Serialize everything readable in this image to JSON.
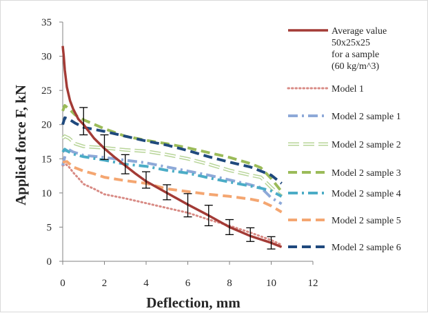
{
  "chart_data": {
    "type": "line",
    "title": "",
    "xlabel": "Deflection, mm",
    "ylabel": "Applied force F, kN",
    "xlim": [
      0,
      12
    ],
    "ylim": [
      0,
      35
    ],
    "xticks": [
      0,
      2,
      4,
      6,
      8,
      10,
      12
    ],
    "yticks": [
      0,
      5,
      10,
      15,
      20,
      25,
      30,
      35
    ],
    "grid": false,
    "legend_position": "right",
    "series": [
      {
        "name": "Average value 50x25x25 for a sample (60 kg/m^3)",
        "legend_lines": [
          "Average value",
          "50x25x25",
          "for a sample",
          "(60 kg/m^3)"
        ],
        "color": "#a33b36",
        "style": "solid",
        "x": [
          0,
          0.05,
          0.1,
          0.2,
          0.35,
          0.5,
          0.75,
          1,
          1.5,
          2,
          2.5,
          3,
          3.5,
          4,
          5,
          6,
          7,
          8,
          9,
          10,
          10.5
        ],
        "y": [
          31.5,
          30,
          28,
          25.5,
          23.5,
          22.3,
          20.8,
          20,
          18,
          16.5,
          15.2,
          14,
          12.8,
          11.7,
          10,
          8.3,
          6.7,
          5,
          3.7,
          2.7,
          2.1
        ],
        "error_bars": {
          "x": [
            1,
            2,
            3,
            4,
            5,
            6,
            7,
            8,
            9,
            10
          ],
          "y": [
            20.5,
            16.7,
            14.2,
            11.9,
            10.1,
            8.2,
            6.7,
            5.0,
            3.9,
            2.7
          ],
          "err": [
            2.0,
            1.8,
            1.4,
            1.2,
            1.1,
            1.7,
            1.5,
            1.1,
            1.0,
            0.9
          ]
        }
      },
      {
        "name": "Model 1",
        "color": "#d88a84",
        "style": "dotted",
        "x": [
          0,
          0.15,
          0.3,
          0.5,
          0.8,
          1,
          1.5,
          2,
          3,
          4,
          5,
          6,
          7,
          8,
          9,
          10,
          10.5
        ],
        "y": [
          14,
          14.2,
          13.8,
          13,
          12,
          11.3,
          10.6,
          9.8,
          9.2,
          8.5,
          7.8,
          7.1,
          6.1,
          5.2,
          4.2,
          3.1,
          2.4
        ]
      },
      {
        "name": "Model 2 sample 1",
        "color": "#8ea9d8",
        "style": "dash-dot",
        "x": [
          0,
          0.2,
          0.5,
          1,
          2,
          3,
          4,
          5,
          6,
          7,
          8,
          9,
          9.5,
          10,
          10.5
        ],
        "y": [
          14,
          16.5,
          16,
          15.5,
          15.2,
          14.8,
          14.4,
          13.8,
          13.2,
          12.6,
          11.9,
          11.2,
          10.8,
          9.3,
          8.4
        ]
      },
      {
        "name": "Model 2 sample 2",
        "color": "#b7d497",
        "style": "hollow",
        "x": [
          0,
          0.1,
          0.3,
          0.6,
          1,
          2,
          3,
          4,
          5,
          6,
          7,
          8,
          9,
          9.5,
          10,
          10.5
        ],
        "y": [
          18,
          18.3,
          18,
          17.2,
          16.8,
          16.6,
          16.3,
          16.1,
          15.6,
          15,
          14.2,
          13.3,
          12.6,
          12.3,
          10.8,
          9.5
        ]
      },
      {
        "name": "Model 2 sample 3",
        "color": "#9bbb59",
        "style": "dashed",
        "x": [
          0,
          0.1,
          0.3,
          0.6,
          1,
          2,
          3,
          4,
          5,
          6,
          7,
          8,
          9,
          9.5,
          10,
          10.5
        ],
        "y": [
          22,
          22.8,
          22.3,
          21.4,
          20.7,
          19.4,
          18.3,
          17.7,
          17.2,
          16.6,
          15.9,
          15.2,
          14.3,
          13.7,
          12.1,
          10.2
        ]
      },
      {
        "name": "Model 2 sample 4",
        "color": "#4bacc6",
        "style": "dash-dot",
        "x": [
          0,
          0.1,
          0.3,
          0.6,
          1,
          2,
          3,
          4,
          5,
          6,
          7,
          8,
          9,
          9.5,
          10,
          10.5
        ],
        "y": [
          16,
          16.4,
          16,
          15.6,
          15.3,
          14.8,
          14.2,
          13.9,
          13.3,
          12.9,
          12.2,
          11.6,
          11,
          10.7,
          10.3,
          9.5
        ]
      },
      {
        "name": "Model 2 sample 5",
        "color": "#f4a671",
        "style": "dashed",
        "x": [
          0,
          0.2,
          0.5,
          1,
          1.5,
          2,
          3,
          4,
          5,
          6,
          7,
          8,
          9,
          9.5,
          10,
          10.5
        ],
        "y": [
          14.5,
          14.6,
          13.8,
          13.2,
          12.8,
          12.3,
          11.8,
          11.4,
          10.6,
          10.2,
          9.8,
          9.5,
          9.1,
          8.8,
          8.1,
          7.2
        ]
      },
      {
        "name": "Model 2 sample 6",
        "color": "#1f497d",
        "style": "dashed",
        "x": [
          0,
          0.1,
          0.3,
          0.6,
          1,
          2,
          3,
          4,
          5,
          6,
          7,
          8,
          9,
          9.5,
          10,
          10.5
        ],
        "y": [
          20,
          21,
          20.8,
          20.2,
          19.6,
          19,
          18.3,
          17.6,
          17,
          16.2,
          15.3,
          14.5,
          13.8,
          13.2,
          12.6,
          11.4
        ]
      }
    ]
  }
}
